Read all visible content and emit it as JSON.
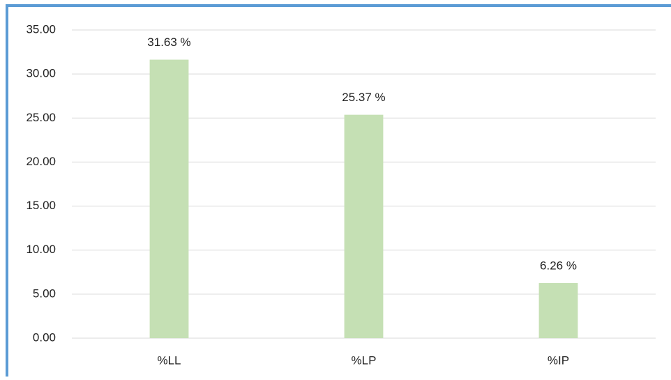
{
  "chart_data": {
    "type": "bar",
    "categories": [
      "%LL",
      "%LP",
      "%IP"
    ],
    "values": [
      31.63,
      25.37,
      6.26
    ],
    "value_labels": [
      "31.63 %",
      "25.37 %",
      "6.26 %"
    ],
    "color": "#c5e0b4",
    "ylim": [
      0,
      35
    ],
    "yticks": [
      {
        "value": 0,
        "label": "0.00"
      },
      {
        "value": 5,
        "label": "5.00"
      },
      {
        "value": 10,
        "label": "10.00"
      },
      {
        "value": 15,
        "label": "15.00"
      },
      {
        "value": 20,
        "label": "20.00"
      },
      {
        "value": 25,
        "label": "25.00"
      },
      {
        "value": 30,
        "label": "30.00"
      },
      {
        "value": 35,
        "label": "35.00"
      }
    ],
    "grid": true
  }
}
